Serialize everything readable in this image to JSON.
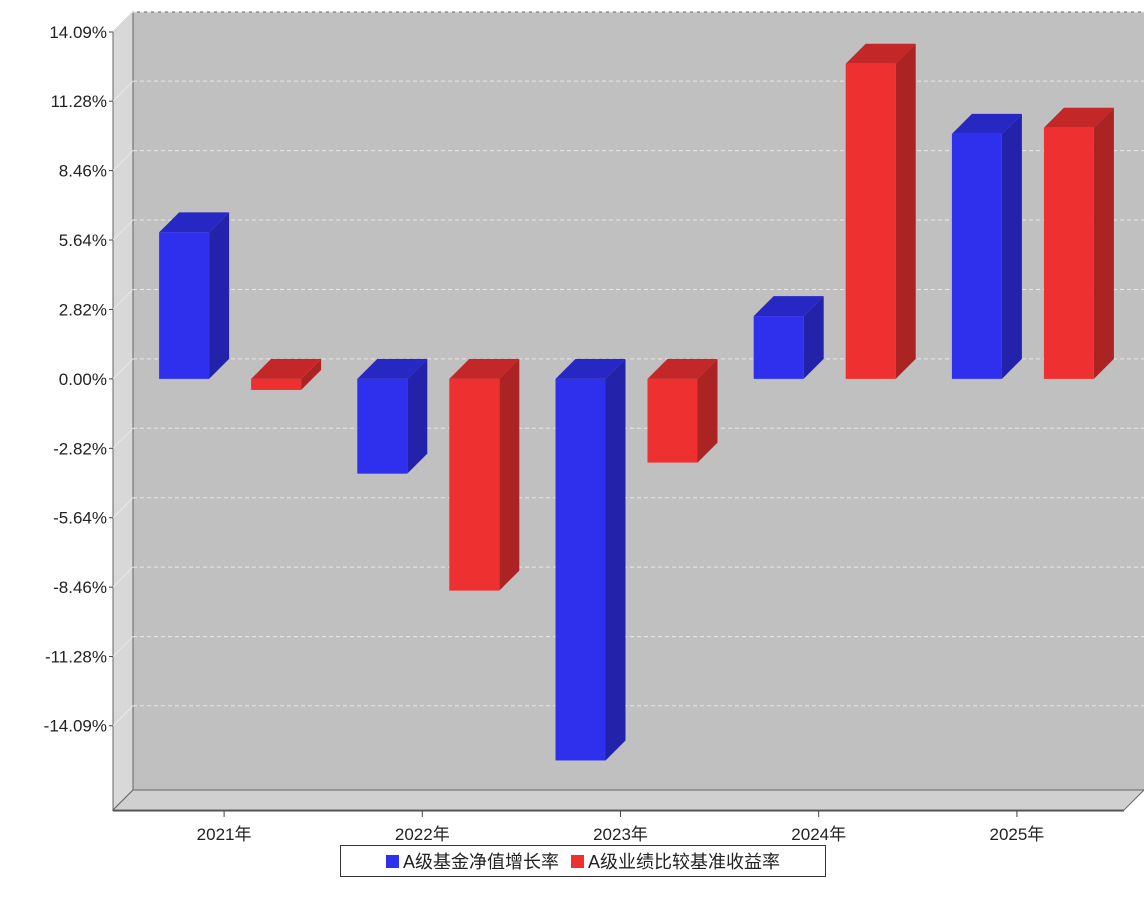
{
  "chart_data": {
    "type": "bar",
    "title": "",
    "xlabel": "",
    "ylabel": "",
    "categories": [
      "2021年",
      "2022年",
      "2023年",
      "2024年",
      "2025年"
    ],
    "series": [
      {
        "name": "A级基金净值增长率",
        "color": "#2f2fee",
        "values": [
          5.95,
          -3.85,
          -15.5,
          2.55,
          9.95
        ]
      },
      {
        "name": "A级业绩比较基准收益率",
        "color": "#ee3030",
        "values": [
          -0.45,
          -8.6,
          -3.4,
          12.8,
          10.2
        ]
      }
    ],
    "yticks": [
      "14.09%",
      "11.28%",
      "8.46%",
      "5.64%",
      "2.82%",
      "0.00%",
      "-2.82%",
      "-5.64%",
      "-8.46%",
      "-11.28%",
      "-14.09%"
    ],
    "ytick_values": [
      14.09,
      11.28,
      8.46,
      5.64,
      2.82,
      0.0,
      -2.82,
      -5.64,
      -8.46,
      -11.28,
      -14.09
    ],
    "ylim": [
      -16.7,
      14.09
    ],
    "grid": true,
    "legend_position": "bottom-center",
    "style": "3d-bar",
    "plot_background": "#c0c0c0"
  }
}
